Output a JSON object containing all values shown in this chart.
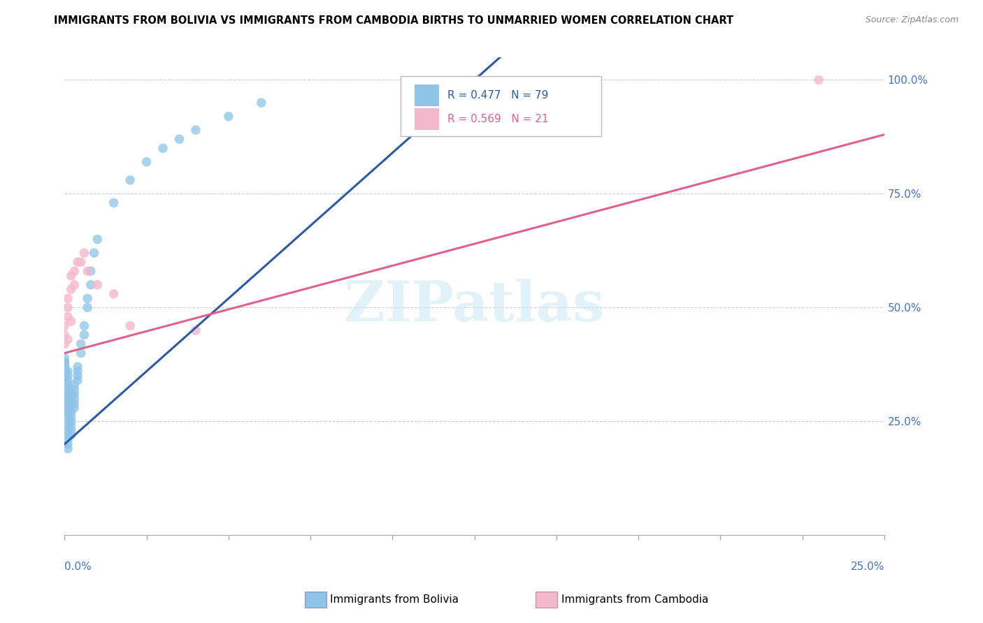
{
  "title": "IMMIGRANTS FROM BOLIVIA VS IMMIGRANTS FROM CAMBODIA BIRTHS TO UNMARRIED WOMEN CORRELATION CHART",
  "source": "Source: ZipAtlas.com",
  "watermark": "ZIPatlas",
  "legend_blue_text": "R = 0.477   N = 79",
  "legend_pink_text": "R = 0.569   N = 21",
  "legend_label_blue": "Immigrants from Bolivia",
  "legend_label_pink": "Immigrants from Cambodia",
  "color_blue": "#8DC4E8",
  "color_pink": "#F4B8CC",
  "color_blue_line": "#2B5BA8",
  "color_pink_line": "#E06090",
  "color_grid": "#CCCCCC",
  "xlim": [
    0.0,
    0.25
  ],
  "ylim": [
    0.0,
    1.05
  ],
  "bolivia_x": [
    0.0,
    0.0,
    0.0,
    0.0,
    0.0,
    0.0,
    0.0,
    0.0,
    0.0,
    0.0,
    0.0,
    0.0,
    0.0,
    0.0,
    0.0,
    0.0,
    0.0,
    0.0,
    0.0,
    0.0,
    0.001,
    0.001,
    0.001,
    0.001,
    0.001,
    0.001,
    0.001,
    0.001,
    0.001,
    0.001,
    0.001,
    0.001,
    0.001,
    0.001,
    0.001,
    0.001,
    0.001,
    0.001,
    0.001,
    0.001,
    0.002,
    0.002,
    0.002,
    0.002,
    0.002,
    0.002,
    0.002,
    0.002,
    0.002,
    0.002,
    0.003,
    0.003,
    0.003,
    0.003,
    0.003,
    0.003,
    0.004,
    0.004,
    0.004,
    0.004,
    0.005,
    0.005,
    0.006,
    0.006,
    0.007,
    0.007,
    0.008,
    0.008,
    0.009,
    0.01,
    0.015,
    0.02,
    0.025,
    0.03,
    0.035,
    0.04,
    0.05,
    0.06,
    0.155
  ],
  "bolivia_y": [
    0.33,
    0.34,
    0.35,
    0.35,
    0.36,
    0.36,
    0.37,
    0.37,
    0.38,
    0.38,
    0.3,
    0.31,
    0.32,
    0.33,
    0.34,
    0.35,
    0.36,
    0.37,
    0.38,
    0.39,
    0.27,
    0.28,
    0.29,
    0.3,
    0.31,
    0.32,
    0.33,
    0.34,
    0.35,
    0.36,
    0.23,
    0.24,
    0.25,
    0.26,
    0.27,
    0.28,
    0.22,
    0.21,
    0.2,
    0.19,
    0.24,
    0.25,
    0.26,
    0.27,
    0.28,
    0.29,
    0.3,
    0.31,
    0.23,
    0.22,
    0.28,
    0.29,
    0.3,
    0.31,
    0.32,
    0.33,
    0.34,
    0.35,
    0.36,
    0.37,
    0.4,
    0.42,
    0.44,
    0.46,
    0.5,
    0.52,
    0.55,
    0.58,
    0.62,
    0.65,
    0.73,
    0.78,
    0.82,
    0.85,
    0.87,
    0.89,
    0.92,
    0.95,
    0.97
  ],
  "cambodia_x": [
    0.0,
    0.0,
    0.0,
    0.001,
    0.001,
    0.001,
    0.001,
    0.002,
    0.002,
    0.002,
    0.003,
    0.003,
    0.004,
    0.005,
    0.006,
    0.007,
    0.01,
    0.015,
    0.02,
    0.04,
    0.23
  ],
  "cambodia_y": [
    0.42,
    0.44,
    0.46,
    0.43,
    0.48,
    0.5,
    0.52,
    0.47,
    0.54,
    0.57,
    0.55,
    0.58,
    0.6,
    0.6,
    0.62,
    0.58,
    0.55,
    0.53,
    0.46,
    0.45,
    1.0
  ]
}
